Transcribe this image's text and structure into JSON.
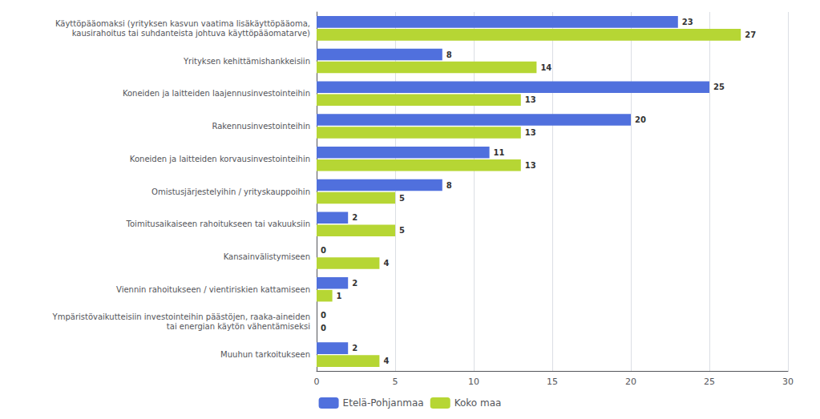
{
  "chart_data": {
    "type": "bar",
    "orientation": "horizontal",
    "categories": [
      "Käyttöpääomaksi (yrityksen kasvun vaatima lisäkäyttöpääoma,\nkausirahoitus tai suhdanteista johtuva käyttöpääomatarve)",
      "Yrityksen kehittämishankkeisiin",
      "Koneiden ja laitteiden laajennusinvestointeihin",
      "Rakennusinvestointeihin",
      "Koneiden ja laitteiden korvausinvestointeihin",
      "Omistusjärjestelyihin / yrityskauppoihin",
      "Toimitusaikaiseen rahoitukseen tai vakuuksiin",
      "Kansainvälistymiseen",
      "Viennin rahoitukseen / vientiriskien kattamiseen",
      "Ympäristövaikutteisiin investointeihin päästöjen, raaka-aineiden\ntai energian käytön vähentämiseksi",
      "Muuhun tarkoitukseen"
    ],
    "series": [
      {
        "name": "Etelä-Pohjanmaa",
        "values": [
          23,
          8,
          25,
          20,
          11,
          8,
          2,
          0,
          2,
          0,
          2
        ]
      },
      {
        "name": "Koko maa",
        "values": [
          27,
          14,
          13,
          13,
          13,
          5,
          5,
          4,
          1,
          0,
          4
        ]
      }
    ],
    "xlim": [
      0,
      30
    ],
    "xticks": [
      0,
      5,
      10,
      15,
      20,
      25,
      30
    ],
    "grid": true,
    "legend": "bottom",
    "data_labels": true
  }
}
